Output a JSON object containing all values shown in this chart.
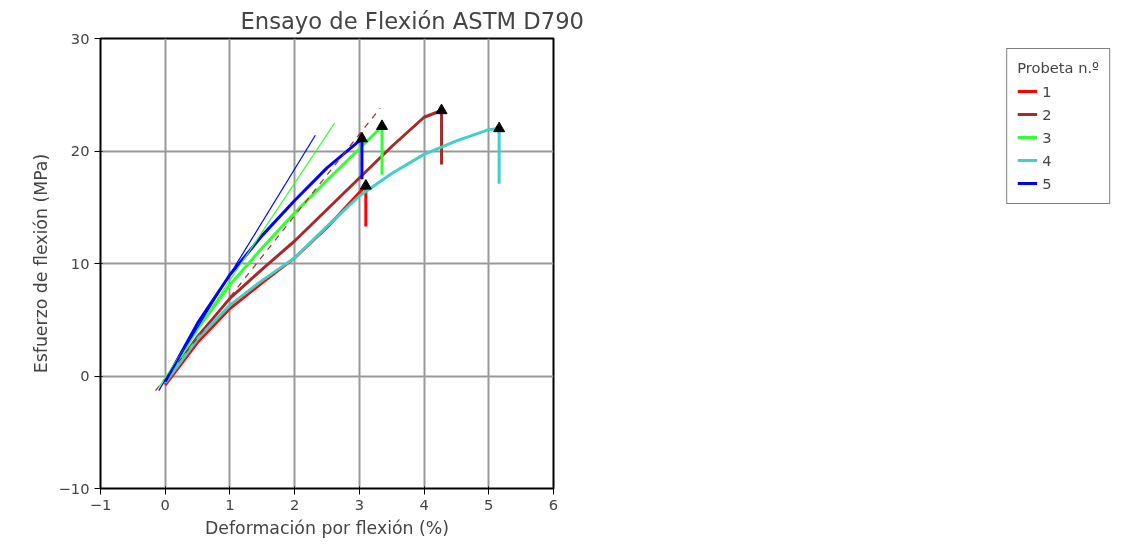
{
  "chart_data": {
    "type": "line",
    "title": "Ensayo de Flexión ASTM D790",
    "xlabel": "Deformación por flexión (%)",
    "ylabel": "Esfuerzo de flexión (MPa)",
    "legend_title": "Probeta n.º",
    "legend": "right",
    "grid": true,
    "marker": "none",
    "line_style": "solid",
    "xlim": [
      -1,
      6
    ],
    "xticks": [
      -1,
      0,
      1,
      2,
      3,
      4,
      5,
      6
    ],
    "ylim": [
      -10,
      30
    ],
    "yticks": [
      -10,
      0,
      10,
      20,
      30
    ],
    "series": [
      {
        "name": "1",
        "color": "#ff0000",
        "x": [
          0,
          0.5,
          1,
          1.5,
          2,
          2.5,
          3,
          3.1,
          3.1
        ],
        "values": [
          -0.8,
          3.0,
          6.0,
          8.3,
          10.5,
          13.2,
          16.3,
          16.9,
          13.3
        ]
      },
      {
        "name": "2",
        "color": "#a52a2a",
        "x": [
          0,
          0.5,
          1,
          1.5,
          2,
          2.5,
          3,
          3.5,
          4,
          4.27,
          4.27
        ],
        "values": [
          -0.6,
          3.5,
          6.9,
          9.5,
          12.0,
          14.8,
          17.6,
          20.4,
          23.0,
          23.6,
          18.8
        ]
      },
      {
        "name": "3",
        "color": "#33ff33",
        "x": [
          0,
          0.5,
          1,
          1.5,
          2,
          2.5,
          3,
          3.35,
          3.35
        ],
        "values": [
          -0.5,
          4.2,
          8.1,
          11.4,
          14.5,
          17.4,
          20.2,
          22.2,
          17.9
        ]
      },
      {
        "name": "4",
        "color": "#40d0c8",
        "x": [
          0,
          0.5,
          1,
          1.5,
          2,
          2.5,
          3,
          3.5,
          4,
          4.5,
          5,
          5.16,
          5.16
        ],
        "values": [
          -0.6,
          3.3,
          6.3,
          8.5,
          10.5,
          13.3,
          16.0,
          18.0,
          19.7,
          20.9,
          21.9,
          22.0,
          17.1
        ]
      },
      {
        "name": "5",
        "color": "#0000ff",
        "x": [
          0,
          0.5,
          1,
          1.5,
          2,
          2.5,
          3.04,
          3.04
        ],
        "values": [
          -0.5,
          4.7,
          9.0,
          12.5,
          15.6,
          18.5,
          21.1,
          17.5
        ]
      },
      {
        "type": "line",
        "color": "#a52a2a",
        "line_style": "dashed",
        "x": [
          -0.15,
          3.32
        ],
        "values": [
          -1.3,
          23.8
        ]
      },
      {
        "type": "line",
        "color": "#33ff33",
        "x": [
          -0.1,
          2.62
        ],
        "values": [
          -1.0,
          22.5
        ]
      },
      {
        "type": "line",
        "color": "#0000ff",
        "x": [
          -0.1,
          2.32
        ],
        "values": [
          -1.3,
          21.4
        ]
      },
      {
        "type": "scatter",
        "marker": "triangle",
        "color": "#000000",
        "x": [
          3.04,
          3.1,
          3.35,
          4.27,
          5.16
        ],
        "values": [
          21.1,
          16.9,
          22.2,
          23.6,
          22.0
        ]
      }
    ]
  }
}
